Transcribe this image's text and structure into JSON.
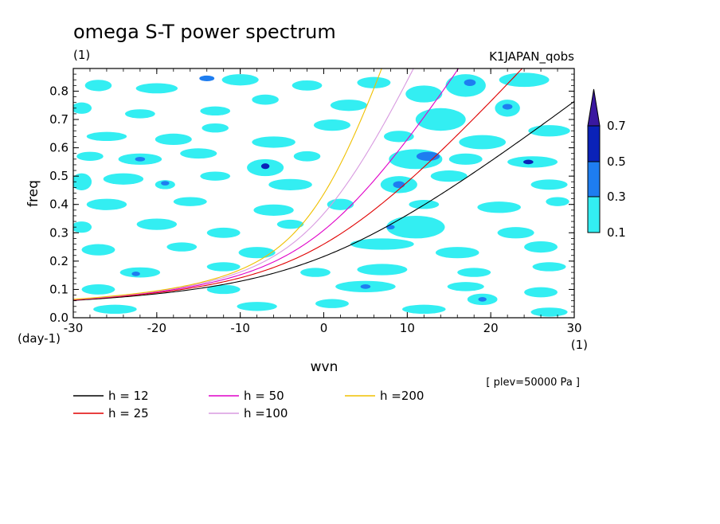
{
  "chart_data": {
    "type": "heatmap",
    "title": "omega S-T power spectrum",
    "title_unit": "(1)",
    "dataset": "K1JAPAN_qobs",
    "xlabel": "wvn",
    "ylabel": "freq",
    "x_unit": "(1)",
    "y_unit": "(day-1)",
    "xlim": [
      -30,
      30
    ],
    "ylim": [
      0,
      0.88
    ],
    "x_ticks": [
      "-30",
      "-20",
      "-10",
      "0",
      "10",
      "20",
      "30"
    ],
    "x_tick_values": [
      -30,
      -20,
      -10,
      0,
      10,
      20,
      30
    ],
    "y_ticks": [
      "0.0",
      "0.1",
      "0.2",
      "0.3",
      "0.4",
      "0.5",
      "0.6",
      "0.7",
      "0.8"
    ],
    "y_tick_values": [
      0,
      0.1,
      0.2,
      0.3,
      0.4,
      0.5,
      0.6,
      0.7,
      0.8
    ],
    "colorbar": {
      "levels": [
        "0.1",
        "0.3",
        "0.5",
        "0.7"
      ],
      "level_values": [
        0.1,
        0.3,
        0.5,
        0.7
      ],
      "colors": [
        "#33eef2",
        "#1e7df0",
        "#0a22b8",
        "#3a18a0"
      ]
    },
    "dispersion_curves": [
      {
        "name": "h = 12",
        "color": "#000000",
        "h": 12
      },
      {
        "name": "h = 25",
        "color": "#e00000",
        "h": 25
      },
      {
        "name": "h = 50",
        "color": "#e000c8",
        "h": 50
      },
      {
        "name": "h =100",
        "color": "#d89ae0",
        "h": 100
      },
      {
        "name": "h =200",
        "color": "#f0c000",
        "h": 200
      }
    ],
    "contours": [
      {
        "wvn": -27,
        "freq": 0.82,
        "rx": 1.6,
        "ry": 0.02,
        "level": 1
      },
      {
        "wvn": -20,
        "freq": 0.81,
        "rx": 2.5,
        "ry": 0.018,
        "level": 1
      },
      {
        "wvn": -10,
        "freq": 0.84,
        "rx": 2.2,
        "ry": 0.02,
        "level": 1
      },
      {
        "wvn": -14,
        "freq": 0.845,
        "rx": 0.9,
        "ry": 0.01,
        "level": 2
      },
      {
        "wvn": -2,
        "freq": 0.82,
        "rx": 1.8,
        "ry": 0.018,
        "level": 1
      },
      {
        "wvn": 6,
        "freq": 0.83,
        "rx": 2,
        "ry": 0.02,
        "level": 1
      },
      {
        "wvn": 12,
        "freq": 0.79,
        "rx": 2.2,
        "ry": 0.03,
        "level": 1
      },
      {
        "wvn": 17,
        "freq": 0.82,
        "rx": 2.4,
        "ry": 0.04,
        "level": 1
      },
      {
        "wvn": 17.5,
        "freq": 0.83,
        "rx": 0.7,
        "ry": 0.012,
        "level": 2
      },
      {
        "wvn": 24,
        "freq": 0.84,
        "rx": 3,
        "ry": 0.025,
        "level": 1
      },
      {
        "wvn": -29,
        "freq": 0.74,
        "rx": 1.2,
        "ry": 0.02,
        "level": 1
      },
      {
        "wvn": -22,
        "freq": 0.72,
        "rx": 1.8,
        "ry": 0.016,
        "level": 1
      },
      {
        "wvn": -13,
        "freq": 0.73,
        "rx": 1.8,
        "ry": 0.016,
        "level": 1
      },
      {
        "wvn": -7,
        "freq": 0.77,
        "rx": 1.6,
        "ry": 0.018,
        "level": 1
      },
      {
        "wvn": 3,
        "freq": 0.75,
        "rx": 2.2,
        "ry": 0.02,
        "level": 1
      },
      {
        "wvn": 14,
        "freq": 0.7,
        "rx": 3,
        "ry": 0.04,
        "level": 1
      },
      {
        "wvn": 22,
        "freq": 0.74,
        "rx": 1.5,
        "ry": 0.03,
        "level": 1
      },
      {
        "wvn": 22,
        "freq": 0.745,
        "rx": 0.6,
        "ry": 0.01,
        "level": 2
      },
      {
        "wvn": -26,
        "freq": 0.64,
        "rx": 2.4,
        "ry": 0.016,
        "level": 1
      },
      {
        "wvn": -18,
        "freq": 0.63,
        "rx": 2.2,
        "ry": 0.02,
        "level": 1
      },
      {
        "wvn": -13,
        "freq": 0.67,
        "rx": 1.6,
        "ry": 0.016,
        "level": 1
      },
      {
        "wvn": -6,
        "freq": 0.62,
        "rx": 2.6,
        "ry": 0.02,
        "level": 1
      },
      {
        "wvn": 1,
        "freq": 0.68,
        "rx": 2.2,
        "ry": 0.02,
        "level": 1
      },
      {
        "wvn": 9,
        "freq": 0.64,
        "rx": 1.8,
        "ry": 0.02,
        "level": 1
      },
      {
        "wvn": 19,
        "freq": 0.62,
        "rx": 2.8,
        "ry": 0.025,
        "level": 1
      },
      {
        "wvn": 27,
        "freq": 0.66,
        "rx": 2.5,
        "ry": 0.02,
        "level": 1
      },
      {
        "wvn": -28,
        "freq": 0.57,
        "rx": 1.6,
        "ry": 0.016,
        "level": 1
      },
      {
        "wvn": -22,
        "freq": 0.56,
        "rx": 2.6,
        "ry": 0.02,
        "level": 1
      },
      {
        "wvn": -22,
        "freq": 0.56,
        "rx": 0.6,
        "ry": 0.008,
        "level": 2
      },
      {
        "wvn": -15,
        "freq": 0.58,
        "rx": 2.2,
        "ry": 0.018,
        "level": 1
      },
      {
        "wvn": -7,
        "freq": 0.53,
        "rx": 2.2,
        "ry": 0.03,
        "level": 1
      },
      {
        "wvn": -7,
        "freq": 0.535,
        "rx": 0.5,
        "ry": 0.01,
        "level": 3
      },
      {
        "wvn": -2,
        "freq": 0.57,
        "rx": 1.6,
        "ry": 0.018,
        "level": 1
      },
      {
        "wvn": 11,
        "freq": 0.56,
        "rx": 3.2,
        "ry": 0.035,
        "level": 1
      },
      {
        "wvn": 12.5,
        "freq": 0.57,
        "rx": 1.4,
        "ry": 0.016,
        "level": 2
      },
      {
        "wvn": 17,
        "freq": 0.56,
        "rx": 2,
        "ry": 0.02,
        "level": 1
      },
      {
        "wvn": 25,
        "freq": 0.55,
        "rx": 3,
        "ry": 0.02,
        "level": 1
      },
      {
        "wvn": 24.5,
        "freq": 0.55,
        "rx": 0.6,
        "ry": 0.008,
        "level": 3
      },
      {
        "wvn": -29,
        "freq": 0.48,
        "rx": 1.2,
        "ry": 0.03,
        "level": 1
      },
      {
        "wvn": -24,
        "freq": 0.49,
        "rx": 2.4,
        "ry": 0.02,
        "level": 1
      },
      {
        "wvn": -19,
        "freq": 0.47,
        "rx": 1.2,
        "ry": 0.016,
        "level": 1
      },
      {
        "wvn": -19,
        "freq": 0.475,
        "rx": 0.5,
        "ry": 0.008,
        "level": 2
      },
      {
        "wvn": -13,
        "freq": 0.5,
        "rx": 1.8,
        "ry": 0.016,
        "level": 1
      },
      {
        "wvn": -4,
        "freq": 0.47,
        "rx": 2.6,
        "ry": 0.02,
        "level": 1
      },
      {
        "wvn": 9,
        "freq": 0.47,
        "rx": 2.2,
        "ry": 0.03,
        "level": 1
      },
      {
        "wvn": 9,
        "freq": 0.47,
        "rx": 0.7,
        "ry": 0.012,
        "level": 2
      },
      {
        "wvn": 15,
        "freq": 0.5,
        "rx": 2.2,
        "ry": 0.02,
        "level": 1
      },
      {
        "wvn": 27,
        "freq": 0.47,
        "rx": 2.2,
        "ry": 0.018,
        "level": 1
      },
      {
        "wvn": -26,
        "freq": 0.4,
        "rx": 2.4,
        "ry": 0.02,
        "level": 1
      },
      {
        "wvn": -16,
        "freq": 0.41,
        "rx": 2,
        "ry": 0.016,
        "level": 1
      },
      {
        "wvn": -6,
        "freq": 0.38,
        "rx": 2.4,
        "ry": 0.02,
        "level": 1
      },
      {
        "wvn": 2,
        "freq": 0.4,
        "rx": 1.6,
        "ry": 0.02,
        "level": 1
      },
      {
        "wvn": 12,
        "freq": 0.4,
        "rx": 1.8,
        "ry": 0.016,
        "level": 1
      },
      {
        "wvn": 21,
        "freq": 0.39,
        "rx": 2.6,
        "ry": 0.02,
        "level": 1
      },
      {
        "wvn": 28,
        "freq": 0.41,
        "rx": 1.4,
        "ry": 0.016,
        "level": 1
      },
      {
        "wvn": -29,
        "freq": 0.32,
        "rx": 1.2,
        "ry": 0.02,
        "level": 1
      },
      {
        "wvn": -20,
        "freq": 0.33,
        "rx": 2.4,
        "ry": 0.02,
        "level": 1
      },
      {
        "wvn": -12,
        "freq": 0.3,
        "rx": 2,
        "ry": 0.018,
        "level": 1
      },
      {
        "wvn": -4,
        "freq": 0.33,
        "rx": 1.6,
        "ry": 0.016,
        "level": 1
      },
      {
        "wvn": 11,
        "freq": 0.32,
        "rx": 3.5,
        "ry": 0.04,
        "level": 1
      },
      {
        "wvn": 8,
        "freq": 0.32,
        "rx": 0.5,
        "ry": 0.008,
        "level": 2
      },
      {
        "wvn": 23,
        "freq": 0.3,
        "rx": 2.2,
        "ry": 0.02,
        "level": 1
      },
      {
        "wvn": -27,
        "freq": 0.24,
        "rx": 2,
        "ry": 0.02,
        "level": 1
      },
      {
        "wvn": -17,
        "freq": 0.25,
        "rx": 1.8,
        "ry": 0.016,
        "level": 1
      },
      {
        "wvn": -8,
        "freq": 0.23,
        "rx": 2.2,
        "ry": 0.02,
        "level": 1
      },
      {
        "wvn": 7,
        "freq": 0.26,
        "rx": 3.8,
        "ry": 0.02,
        "level": 1
      },
      {
        "wvn": 16,
        "freq": 0.23,
        "rx": 2.6,
        "ry": 0.02,
        "level": 1
      },
      {
        "wvn": 26,
        "freq": 0.25,
        "rx": 2,
        "ry": 0.02,
        "level": 1
      },
      {
        "wvn": -22,
        "freq": 0.16,
        "rx": 2.4,
        "ry": 0.018,
        "level": 1
      },
      {
        "wvn": -22.5,
        "freq": 0.155,
        "rx": 0.5,
        "ry": 0.008,
        "level": 2
      },
      {
        "wvn": -12,
        "freq": 0.18,
        "rx": 2,
        "ry": 0.016,
        "level": 1
      },
      {
        "wvn": -1,
        "freq": 0.16,
        "rx": 1.8,
        "ry": 0.016,
        "level": 1
      },
      {
        "wvn": 7,
        "freq": 0.17,
        "rx": 3,
        "ry": 0.02,
        "level": 1
      },
      {
        "wvn": 18,
        "freq": 0.16,
        "rx": 2,
        "ry": 0.016,
        "level": 1
      },
      {
        "wvn": 27,
        "freq": 0.18,
        "rx": 2,
        "ry": 0.016,
        "level": 1
      },
      {
        "wvn": -27,
        "freq": 0.1,
        "rx": 2,
        "ry": 0.018,
        "level": 1
      },
      {
        "wvn": -12,
        "freq": 0.1,
        "rx": 2,
        "ry": 0.016,
        "level": 1
      },
      {
        "wvn": 5,
        "freq": 0.11,
        "rx": 3.6,
        "ry": 0.02,
        "level": 1
      },
      {
        "wvn": 5,
        "freq": 0.11,
        "rx": 0.6,
        "ry": 0.008,
        "level": 2
      },
      {
        "wvn": 17,
        "freq": 0.11,
        "rx": 2.2,
        "ry": 0.016,
        "level": 1
      },
      {
        "wvn": 26,
        "freq": 0.09,
        "rx": 2,
        "ry": 0.018,
        "level": 1
      },
      {
        "wvn": -25,
        "freq": 0.03,
        "rx": 2.6,
        "ry": 0.016,
        "level": 1
      },
      {
        "wvn": -8,
        "freq": 0.04,
        "rx": 2.4,
        "ry": 0.016,
        "level": 1
      },
      {
        "wvn": 1,
        "freq": 0.05,
        "rx": 2,
        "ry": 0.016,
        "level": 1
      },
      {
        "wvn": 12,
        "freq": 0.03,
        "rx": 2.6,
        "ry": 0.016,
        "level": 1
      },
      {
        "wvn": 19,
        "freq": 0.065,
        "rx": 1.8,
        "ry": 0.02,
        "level": 1
      },
      {
        "wvn": 19,
        "freq": 0.065,
        "rx": 0.5,
        "ry": 0.008,
        "level": 2
      },
      {
        "wvn": 27,
        "freq": 0.02,
        "rx": 2.2,
        "ry": 0.016,
        "level": 1
      }
    ]
  },
  "plev_note": "[ plev=50000 Pa ]"
}
